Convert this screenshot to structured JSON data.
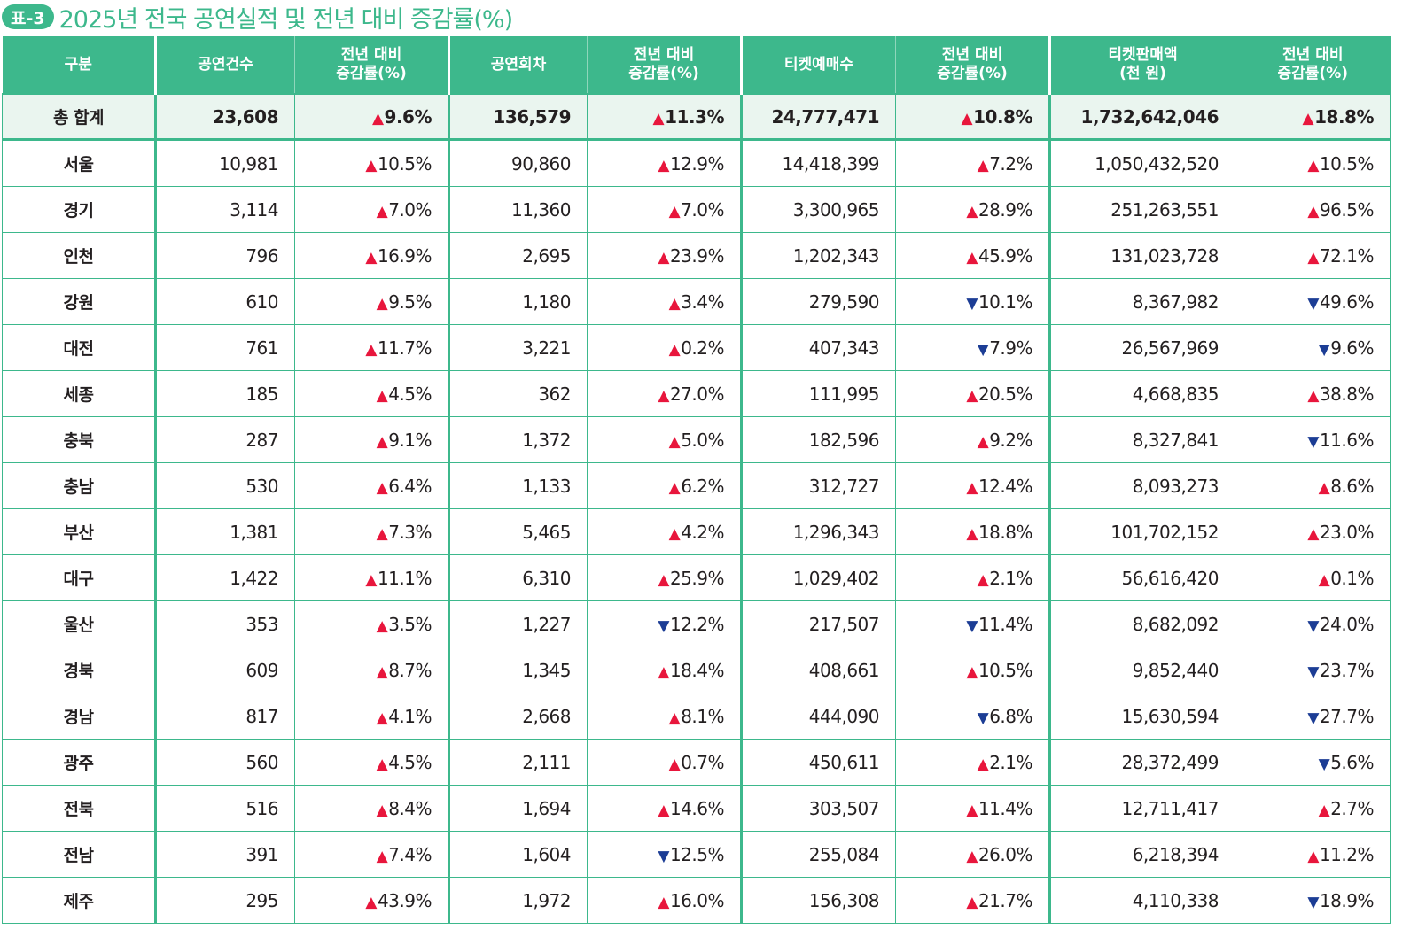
{
  "badge": "표-3",
  "title": "2025년 전국 공연실적 및 전년 대비 증감률(%)",
  "colors": {
    "accent": "#3db88c",
    "up": "#e8163c",
    "down": "#1c3d95",
    "total_bg": "#eaf5ef"
  },
  "headers": [
    "구분",
    "공연건수",
    "전년 대비\n증감률(%)",
    "공연회차",
    "전년 대비\n증감률(%)",
    "티켓예매수",
    "전년 대비\n증감률(%)",
    "티켓판매액\n(천 원)",
    "전년 대비\n증감률(%)"
  ],
  "total": {
    "region": "총 합계",
    "cells": [
      "23,608",
      [
        "up",
        "9.6%"
      ],
      "136,579",
      [
        "up",
        "11.3%"
      ],
      "24,777,471",
      [
        "up",
        "10.8%"
      ],
      "1,732,642,046",
      [
        "up",
        "18.8%"
      ]
    ]
  },
  "rows": [
    {
      "region": "서울",
      "cells": [
        "10,981",
        [
          "up",
          "10.5%"
        ],
        "90,860",
        [
          "up",
          "12.9%"
        ],
        "14,418,399",
        [
          "up",
          "7.2%"
        ],
        "1,050,432,520",
        [
          "up",
          "10.5%"
        ]
      ]
    },
    {
      "region": "경기",
      "cells": [
        "3,114",
        [
          "up",
          "7.0%"
        ],
        "11,360",
        [
          "up",
          "7.0%"
        ],
        "3,300,965",
        [
          "up",
          "28.9%"
        ],
        "251,263,551",
        [
          "up",
          "96.5%"
        ]
      ]
    },
    {
      "region": "인천",
      "cells": [
        "796",
        [
          "up",
          "16.9%"
        ],
        "2,695",
        [
          "up",
          "23.9%"
        ],
        "1,202,343",
        [
          "up",
          "45.9%"
        ],
        "131,023,728",
        [
          "up",
          "72.1%"
        ]
      ]
    },
    {
      "region": "강원",
      "cells": [
        "610",
        [
          "up",
          "9.5%"
        ],
        "1,180",
        [
          "up",
          "3.4%"
        ],
        "279,590",
        [
          "down",
          "10.1%"
        ],
        "8,367,982",
        [
          "down",
          "49.6%"
        ]
      ]
    },
    {
      "region": "대전",
      "cells": [
        "761",
        [
          "up",
          "11.7%"
        ],
        "3,221",
        [
          "up",
          "0.2%"
        ],
        "407,343",
        [
          "down",
          "7.9%"
        ],
        "26,567,969",
        [
          "down",
          "9.6%"
        ]
      ]
    },
    {
      "region": "세종",
      "cells": [
        "185",
        [
          "up",
          "4.5%"
        ],
        "362",
        [
          "up",
          "27.0%"
        ],
        "111,995",
        [
          "up",
          "20.5%"
        ],
        "4,668,835",
        [
          "up",
          "38.8%"
        ]
      ]
    },
    {
      "region": "충북",
      "cells": [
        "287",
        [
          "up",
          "9.1%"
        ],
        "1,372",
        [
          "up",
          "5.0%"
        ],
        "182,596",
        [
          "up",
          "9.2%"
        ],
        "8,327,841",
        [
          "down",
          "11.6%"
        ]
      ]
    },
    {
      "region": "충남",
      "cells": [
        "530",
        [
          "up",
          "6.4%"
        ],
        "1,133",
        [
          "up",
          "6.2%"
        ],
        "312,727",
        [
          "up",
          "12.4%"
        ],
        "8,093,273",
        [
          "up",
          "8.6%"
        ]
      ]
    },
    {
      "region": "부산",
      "cells": [
        "1,381",
        [
          "up",
          "7.3%"
        ],
        "5,465",
        [
          "up",
          "4.2%"
        ],
        "1,296,343",
        [
          "up",
          "18.8%"
        ],
        "101,702,152",
        [
          "up",
          "23.0%"
        ]
      ]
    },
    {
      "region": "대구",
      "cells": [
        "1,422",
        [
          "up",
          "11.1%"
        ],
        "6,310",
        [
          "up",
          "25.9%"
        ],
        "1,029,402",
        [
          "up",
          "2.1%"
        ],
        "56,616,420",
        [
          "up",
          "0.1%"
        ]
      ]
    },
    {
      "region": "울산",
      "cells": [
        "353",
        [
          "up",
          "3.5%"
        ],
        "1,227",
        [
          "down",
          "12.2%"
        ],
        "217,507",
        [
          "down",
          "11.4%"
        ],
        "8,682,092",
        [
          "down",
          "24.0%"
        ]
      ]
    },
    {
      "region": "경북",
      "cells": [
        "609",
        [
          "up",
          "8.7%"
        ],
        "1,345",
        [
          "up",
          "18.4%"
        ],
        "408,661",
        [
          "up",
          "10.5%"
        ],
        "9,852,440",
        [
          "down",
          "23.7%"
        ]
      ]
    },
    {
      "region": "경남",
      "cells": [
        "817",
        [
          "up",
          "4.1%"
        ],
        "2,668",
        [
          "up",
          "8.1%"
        ],
        "444,090",
        [
          "down",
          "6.8%"
        ],
        "15,630,594",
        [
          "down",
          "27.7%"
        ]
      ]
    },
    {
      "region": "광주",
      "cells": [
        "560",
        [
          "up",
          "4.5%"
        ],
        "2,111",
        [
          "up",
          "0.7%"
        ],
        "450,611",
        [
          "up",
          "2.1%"
        ],
        "28,372,499",
        [
          "down",
          "5.6%"
        ]
      ]
    },
    {
      "region": "전북",
      "cells": [
        "516",
        [
          "up",
          "8.4%"
        ],
        "1,694",
        [
          "up",
          "14.6%"
        ],
        "303,507",
        [
          "up",
          "11.4%"
        ],
        "12,711,417",
        [
          "up",
          "2.7%"
        ]
      ]
    },
    {
      "region": "전남",
      "cells": [
        "391",
        [
          "up",
          "7.4%"
        ],
        "1,604",
        [
          "down",
          "12.5%"
        ],
        "255,084",
        [
          "up",
          "26.0%"
        ],
        "6,218,394",
        [
          "up",
          "11.2%"
        ]
      ]
    },
    {
      "region": "제주",
      "cells": [
        "295",
        [
          "up",
          "43.9%"
        ],
        "1,972",
        [
          "up",
          "16.0%"
        ],
        "156,308",
        [
          "up",
          "21.7%"
        ],
        "4,110,338",
        [
          "down",
          "18.9%"
        ]
      ]
    }
  ]
}
